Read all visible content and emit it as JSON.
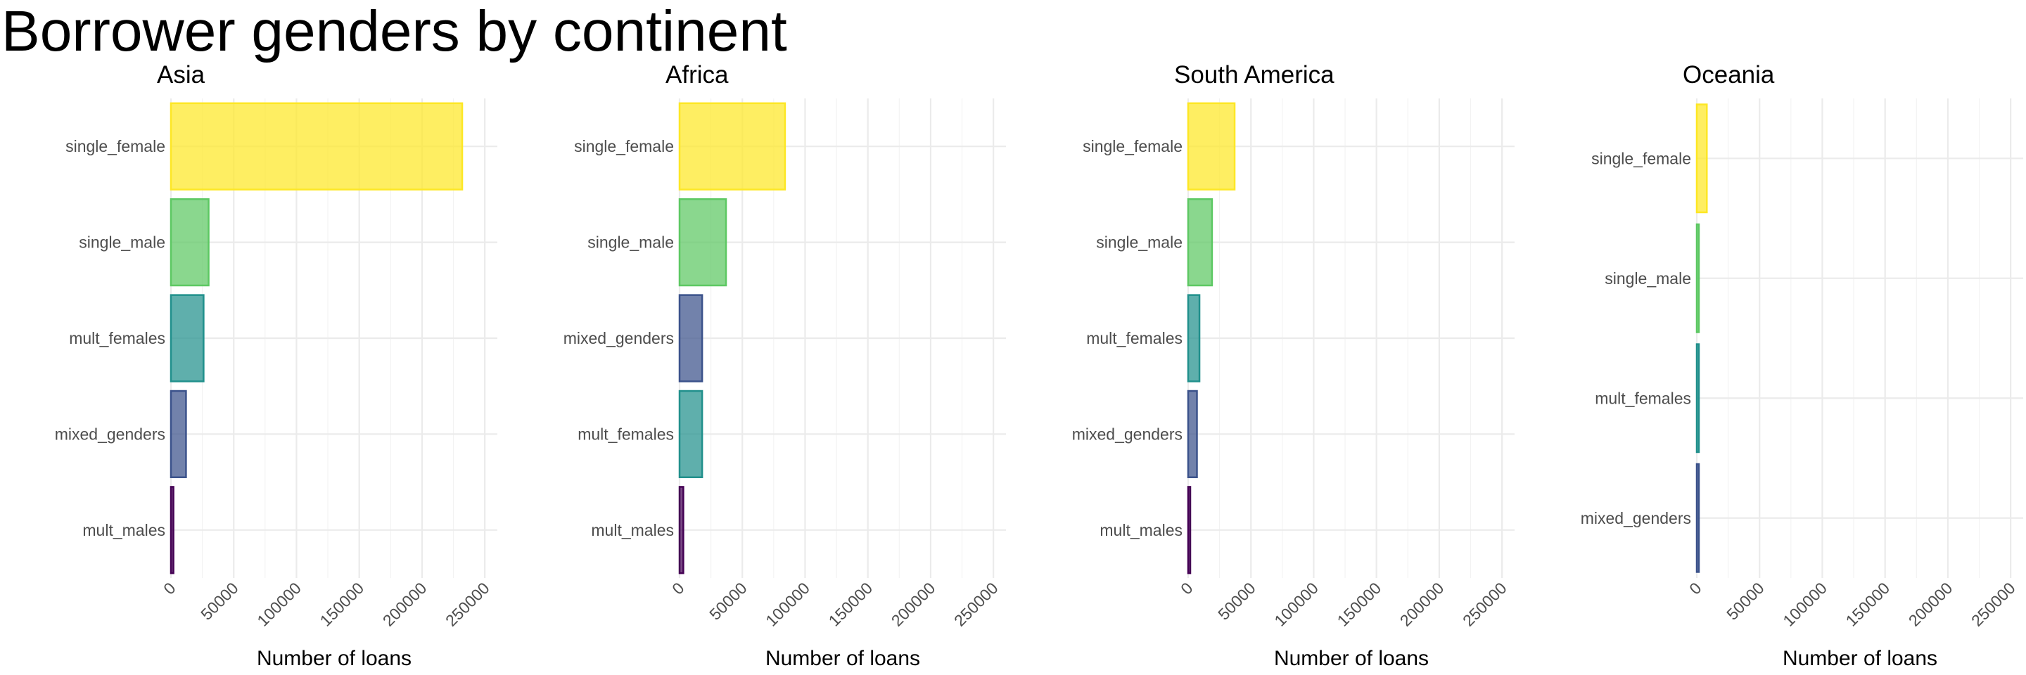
{
  "title": "Borrower genders by continent",
  "chart_data": {
    "type": "bar",
    "orientation": "horizontal",
    "title": "Borrower genders by continent",
    "xlabel": "Number of loans",
    "xlim": [
      0,
      260000
    ],
    "x_ticks": [
      0,
      50000,
      100000,
      150000,
      200000,
      250000
    ],
    "x_tick_labels": [
      "0",
      "50000",
      "100000",
      "150000",
      "200000",
      "250000"
    ],
    "grid": true,
    "legend": "none",
    "colors": {
      "single_female": "#FDE725",
      "single_male": "#5DC863",
      "mult_females": "#21908C",
      "mixed_genders": "#3B528B",
      "mult_males": "#440154"
    },
    "facets": [
      {
        "name": "Asia",
        "categories": [
          "single_female",
          "single_male",
          "mult_females",
          "mixed_genders",
          "mult_males"
        ],
        "values": [
          232000,
          30000,
          26000,
          12000,
          2000
        ]
      },
      {
        "name": "Africa",
        "categories": [
          "single_female",
          "single_male",
          "mixed_genders",
          "mult_females",
          "mult_males"
        ],
        "values": [
          84000,
          37000,
          18000,
          18000,
          3000
        ]
      },
      {
        "name": "South America",
        "categories": [
          "single_female",
          "single_male",
          "mult_females",
          "mixed_genders",
          "mult_males"
        ],
        "values": [
          37000,
          19000,
          9000,
          7000,
          1000
        ]
      },
      {
        "name": "Oceania",
        "categories": [
          "single_female",
          "single_male",
          "mult_females",
          "mixed_genders"
        ],
        "values": [
          8000,
          1000,
          800,
          500
        ]
      }
    ]
  }
}
